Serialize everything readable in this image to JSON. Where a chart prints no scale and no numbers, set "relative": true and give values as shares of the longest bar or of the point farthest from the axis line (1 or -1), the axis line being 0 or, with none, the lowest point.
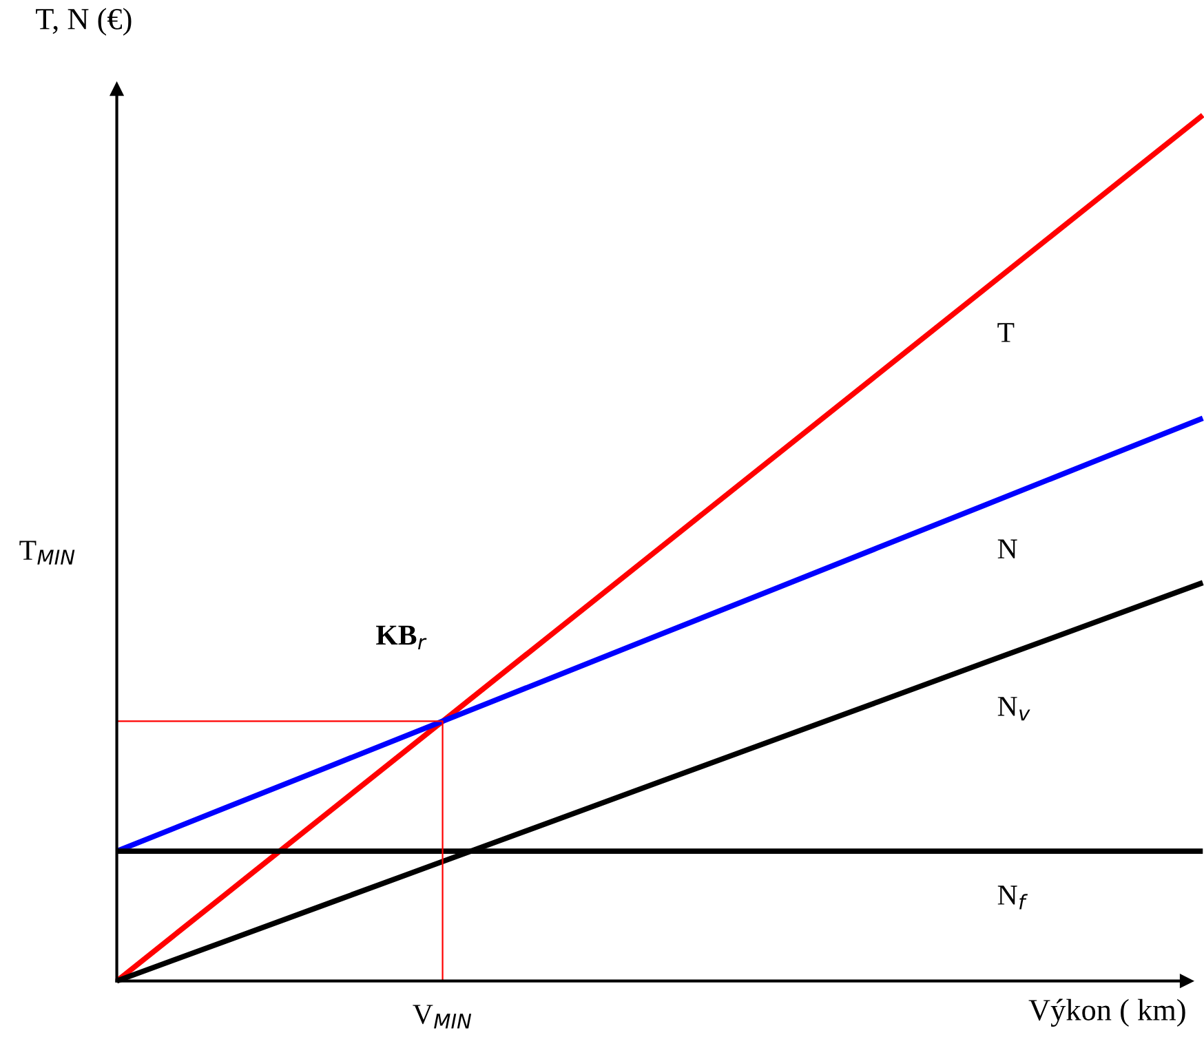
{
  "chart_data": {
    "type": "line",
    "relative": true,
    "xlabel": "Výkon ( km)",
    "ylabel": "T, N (€)",
    "legend": false,
    "marker": "none",
    "line_style": "solid",
    "categories": [
      null,
      null,
      null,
      null,
      null,
      null,
      null,
      null,
      null,
      null,
      null
    ],
    "annotations": [
      "T$_{MIN}$",
      "KB$_{r}$",
      "V$_{MIN}$"
    ],
    "series": [
      {
        "name": "T",
        "color": "#ff0000",
        "values": [
          0,
          0.1,
          0.2,
          0.3,
          0.4,
          0.5,
          0.6,
          0.7,
          0.8,
          0.9,
          1
        ]
      },
      {
        "name": "N",
        "color": "#0000ff",
        "values": [
          0.15,
          0.2,
          0.25,
          0.3,
          0.35,
          0.4,
          0.45,
          0.5,
          0.55,
          0.6,
          0.65
        ]
      },
      {
        "name": "N$_{v}$",
        "color": "#000000",
        "values": [
          0,
          0.046,
          0.092,
          0.138,
          0.184,
          0.23,
          0.276,
          0.322,
          0.368,
          0.414,
          0.46
        ]
      },
      {
        "name": "N$_{f}$",
        "color": "#000000",
        "values": [
          0.15,
          0.15,
          0.15,
          0.15,
          0.15,
          0.15,
          0.15,
          0.15,
          0.15,
          0.15,
          0.15
        ]
      }
    ]
  }
}
